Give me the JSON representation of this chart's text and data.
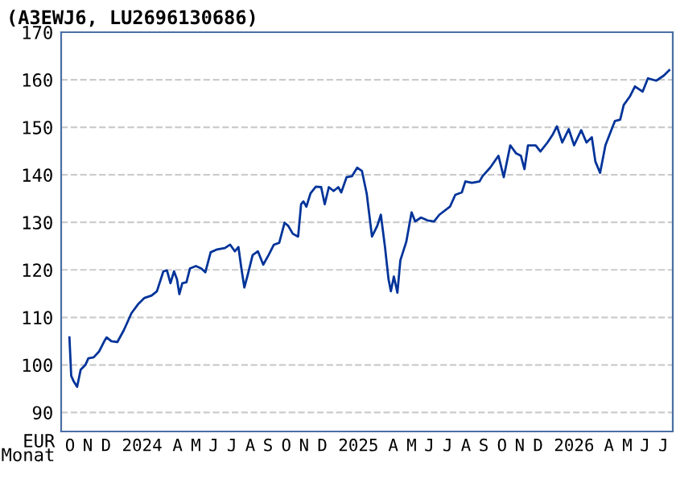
{
  "chart_data": {
    "type": "line",
    "title": "(A3EWJ6, LU2696130686)",
    "xlabel": "Monat",
    "ylabel": "EUR",
    "x": [
      "2023-10-15",
      "2023-10-18",
      "2023-10-22",
      "2023-10-28",
      "2023-11-03",
      "2023-11-11",
      "2023-11-16",
      "2023-11-25",
      "2023-12-04",
      "2023-12-13",
      "2023-12-17",
      "2023-12-25",
      "2024-01-04",
      "2024-01-15",
      "2024-01-28",
      "2024-02-09",
      "2024-02-19",
      "2024-03-02",
      "2024-03-11",
      "2024-03-22",
      "2024-03-28",
      "2024-04-03",
      "2024-04-09",
      "2024-04-14",
      "2024-04-18",
      "2024-04-23",
      "2024-04-30",
      "2024-05-06",
      "2024-05-16",
      "2024-05-25",
      "2024-06-01",
      "2024-06-10",
      "2024-06-21",
      "2024-07-04",
      "2024-07-13",
      "2024-07-21",
      "2024-07-27",
      "2024-08-01",
      "2024-08-06",
      "2024-08-12",
      "2024-08-20",
      "2024-08-29",
      "2024-09-07",
      "2024-09-16",
      "2024-09-25",
      "2024-10-04",
      "2024-10-13",
      "2024-10-19",
      "2024-10-27",
      "2024-11-05",
      "2024-11-10",
      "2024-11-14",
      "2024-11-19",
      "2024-11-26",
      "2024-12-05",
      "2024-12-14",
      "2024-12-20",
      "2024-12-27",
      "2025-01-04",
      "2025-01-12",
      "2025-01-17",
      "2025-01-26",
      "2025-02-04",
      "2025-02-13",
      "2025-02-21",
      "2025-03-01",
      "2025-03-10",
      "2025-03-19",
      "2025-03-25",
      "2025-04-01",
      "2025-04-07",
      "2025-04-11",
      "2025-04-16",
      "2025-04-22",
      "2025-04-27",
      "2025-05-07",
      "2025-05-16",
      "2025-05-22",
      "2025-06-01",
      "2025-06-12",
      "2025-06-23",
      "2025-07-02",
      "2025-07-20",
      "2025-07-29",
      "2025-08-09",
      "2025-08-15",
      "2025-08-26",
      "2025-09-08",
      "2025-09-13",
      "2025-09-26",
      "2025-10-10",
      "2025-10-19",
      "2025-10-30",
      "2025-11-09",
      "2025-11-17",
      "2025-11-23",
      "2025-11-29",
      "2025-12-12",
      "2025-12-20",
      "2026-01-01",
      "2026-01-10",
      "2026-01-17",
      "2026-01-26",
      "2026-02-06",
      "2026-02-15",
      "2026-02-27",
      "2026-03-08",
      "2026-03-17",
      "2026-03-23",
      "2026-03-31",
      "2026-04-09",
      "2026-04-18",
      "2026-04-25",
      "2026-05-04",
      "2026-05-10",
      "2026-05-20",
      "2026-05-29",
      "2026-06-11",
      "2026-06-20",
      "2026-07-04",
      "2026-07-17",
      "2026-07-26"
    ],
    "series": [
      {
        "color": "#003399",
        "values": [
          105.8,
          97.7,
          96.6,
          95.4,
          99.0,
          100.0,
          101.4,
          101.6,
          102.8,
          105.0,
          105.8,
          105.0,
          104.8,
          107.3,
          110.9,
          112.9,
          114.1,
          114.6,
          115.5,
          119.7,
          119.9,
          117.2,
          119.7,
          118.0,
          114.9,
          117.2,
          117.4,
          120.3,
          120.8,
          120.3,
          119.5,
          123.7,
          124.3,
          124.6,
          125.3,
          123.9,
          124.8,
          120.3,
          116.3,
          119.1,
          123.1,
          123.9,
          121.1,
          123.1,
          125.3,
          125.7,
          129.9,
          129.3,
          127.6,
          127.0,
          133.8,
          134.4,
          133.3,
          136.1,
          137.5,
          137.4,
          133.8,
          137.4,
          136.6,
          137.4,
          136.3,
          139.5,
          139.7,
          141.5,
          140.8,
          136.1,
          127.0,
          129.3,
          131.6,
          124.8,
          118.0,
          115.5,
          118.6,
          115.2,
          122.0,
          125.9,
          132.1,
          130.2,
          131.0,
          130.4,
          130.2,
          131.6,
          133.3,
          135.8,
          136.3,
          138.6,
          138.3,
          138.6,
          139.7,
          141.5,
          144.0,
          139.5,
          146.2,
          144.5,
          144.0,
          141.2,
          146.2,
          146.2,
          144.9,
          146.8,
          148.5,
          150.2,
          146.8,
          149.6,
          146.2,
          149.4,
          146.8,
          147.9,
          142.8,
          140.4,
          146.2,
          149.1,
          151.3,
          151.6,
          154.7,
          156.4,
          158.6,
          157.5,
          160.3,
          159.8,
          160.9,
          162.0
        ]
      }
    ],
    "xlim": [
      "2023-10-01",
      "2026-08-01"
    ],
    "xticks": [
      {
        "value": "2023-10-16",
        "label": "O"
      },
      {
        "value": "2023-11-15",
        "label": "N"
      },
      {
        "value": "2023-12-16",
        "label": "D"
      },
      {
        "value": "2024-02-15",
        "label": "2024"
      },
      {
        "value": "2024-04-15",
        "label": "A"
      },
      {
        "value": "2024-05-16",
        "label": "M"
      },
      {
        "value": "2024-06-15",
        "label": "J"
      },
      {
        "value": "2024-07-16",
        "label": "J"
      },
      {
        "value": "2024-08-16",
        "label": "A"
      },
      {
        "value": "2024-09-15",
        "label": "S"
      },
      {
        "value": "2024-10-16",
        "label": "O"
      },
      {
        "value": "2024-11-15",
        "label": "N"
      },
      {
        "value": "2024-12-16",
        "label": "D"
      },
      {
        "value": "2025-02-15",
        "label": "2025"
      },
      {
        "value": "2025-04-15",
        "label": "A"
      },
      {
        "value": "2025-05-16",
        "label": "M"
      },
      {
        "value": "2025-06-15",
        "label": "J"
      },
      {
        "value": "2025-07-16",
        "label": "J"
      },
      {
        "value": "2025-08-16",
        "label": "A"
      },
      {
        "value": "2025-09-15",
        "label": "S"
      },
      {
        "value": "2025-10-16",
        "label": "O"
      },
      {
        "value": "2025-11-15",
        "label": "N"
      },
      {
        "value": "2025-12-16",
        "label": "D"
      },
      {
        "value": "2026-02-15",
        "label": "2026"
      },
      {
        "value": "2026-04-15",
        "label": "A"
      },
      {
        "value": "2026-05-16",
        "label": "M"
      },
      {
        "value": "2026-06-15",
        "label": "J"
      },
      {
        "value": "2026-07-16",
        "label": "J"
      }
    ],
    "ylim": [
      86,
      170
    ],
    "yticks": [
      90,
      100,
      110,
      120,
      130,
      140,
      150,
      160,
      170
    ],
    "grid": "y",
    "line_style": "solid",
    "legend": false
  }
}
